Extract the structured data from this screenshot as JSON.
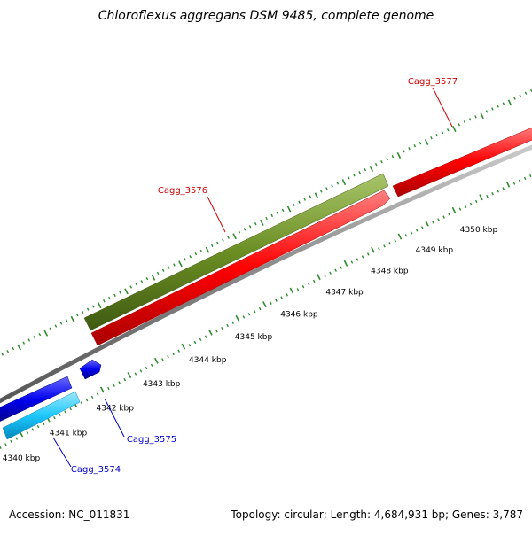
{
  "title": "Chloroflexus aggregans DSM 9485, complete genome",
  "footer": {
    "accession": "Accession: NC_011831",
    "summary": "Topology: circular; Length: 4,684,931 bp; Genes: 3,787"
  },
  "scale_labels": [
    "4340 kbp",
    "4341 kbp",
    "4342 kbp",
    "4343 kbp",
    "4344 kbp",
    "4345 kbp",
    "4346 kbp",
    "4347 kbp",
    "4348 kbp",
    "4349 kbp",
    "4350 kbp"
  ],
  "genes": [
    {
      "label": "Cagg_3577",
      "color": "#cc0000"
    },
    {
      "label": "Cagg_3576",
      "color": "#cc0000"
    },
    {
      "label": "Cagg_3575",
      "color": "#0000cc"
    },
    {
      "label": "Cagg_3574",
      "color": "#0000cc"
    }
  ],
  "colors": {
    "forward_cds": "#ff0000",
    "reverse_cds": "#0000ee",
    "orf": "#6b8e23",
    "rna": "#1ec8ff",
    "backbone": "#888888",
    "ticks": "#2e8b2e"
  }
}
